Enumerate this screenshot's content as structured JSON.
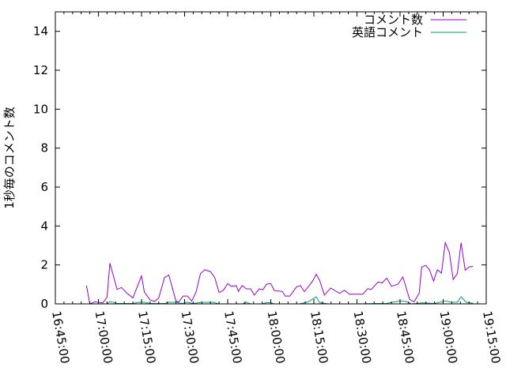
{
  "chart_data": {
    "type": "line",
    "title": "",
    "xlabel": "",
    "ylabel": "1秒毎のコメント数",
    "xlim": [
      "16:45:00",
      "19:15:00"
    ],
    "ylim": [
      0,
      15
    ],
    "x_ticks": [
      "16:45:00",
      "17:00:00",
      "17:15:00",
      "17:30:00",
      "17:45:00",
      "18:00:00",
      "18:15:00",
      "18:30:00",
      "18:45:00",
      "19:00:00",
      "19:15:00"
    ],
    "y_ticks": [
      "0",
      "2",
      "4",
      "6",
      "8",
      "10",
      "12",
      "14"
    ],
    "grid": false,
    "legend_position": "top-right",
    "series": [
      {
        "name": "コメント数",
        "color": "#9400d3",
        "points": [
          [
            "16:55:50",
            0.94
          ],
          [
            "16:57:00",
            0
          ],
          [
            "16:58:45",
            0.1
          ],
          [
            "17:01:30",
            0.05
          ],
          [
            "17:03:00",
            0.34
          ],
          [
            "17:04:00",
            2.09
          ],
          [
            "17:06:30",
            0.74
          ],
          [
            "17:08:00",
            0.84
          ],
          [
            "17:10:00",
            0.54
          ],
          [
            "17:12:00",
            0.31
          ],
          [
            "17:15:00",
            1.44
          ],
          [
            "17:16:00",
            0.61
          ],
          [
            "17:18:00",
            0.2
          ],
          [
            "17:19:30",
            0.12
          ],
          [
            "17:21:00",
            0.31
          ],
          [
            "17:23:00",
            1.35
          ],
          [
            "17:24:30",
            1.48
          ],
          [
            "17:27:00",
            0.14
          ],
          [
            "17:28:00",
            0.1
          ],
          [
            "17:29:30",
            0.4
          ],
          [
            "17:31:00",
            0.4
          ],
          [
            "17:32:30",
            0.14
          ],
          [
            "17:34:00",
            0.61
          ],
          [
            "17:35:30",
            1.55
          ],
          [
            "17:37:00",
            1.75
          ],
          [
            "17:39:00",
            1.66
          ],
          [
            "17:40:30",
            1.35
          ],
          [
            "17:42:00",
            0.58
          ],
          [
            "17:43:30",
            0.7
          ],
          [
            "17:45:00",
            1.04
          ],
          [
            "17:46:15",
            0.9
          ],
          [
            "17:48:00",
            0.94
          ],
          [
            "17:48:45",
            0.64
          ],
          [
            "17:50:00",
            0.94
          ],
          [
            "17:51:30",
            0.77
          ],
          [
            "17:53:00",
            0.77
          ],
          [
            "17:54:15",
            0.45
          ],
          [
            "17:56:00",
            0.77
          ],
          [
            "17:57:15",
            0.72
          ],
          [
            "17:58:30",
            1.01
          ],
          [
            "18:00:00",
            1.04
          ],
          [
            "18:01:15",
            0.68
          ],
          [
            "18:04:00",
            0.64
          ],
          [
            "18:05:00",
            0.4
          ],
          [
            "18:06:40",
            0.4
          ],
          [
            "18:09:00",
            0.88
          ],
          [
            "18:10:20",
            0.94
          ],
          [
            "18:11:40",
            0.63
          ],
          [
            "18:14:30",
            1.15
          ],
          [
            "18:15:50",
            1.52
          ],
          [
            "18:17:00",
            1.21
          ],
          [
            "18:18:40",
            0.45
          ],
          [
            "18:20:50",
            0.81
          ],
          [
            "18:24:00",
            0.54
          ],
          [
            "18:25:40",
            0.7
          ],
          [
            "18:27:20",
            0.5
          ],
          [
            "18:32:00",
            0.5
          ],
          [
            "18:33:45",
            0.78
          ],
          [
            "18:35:00",
            0.74
          ],
          [
            "18:37:20",
            1.12
          ],
          [
            "18:38:45",
            1.08
          ],
          [
            "18:40:25",
            1.32
          ],
          [
            "18:42:00",
            0.9
          ],
          [
            "18:44:15",
            1.01
          ],
          [
            "18:46:00",
            1.38
          ],
          [
            "18:48:20",
            0.23
          ],
          [
            "18:49:50",
            0.1
          ],
          [
            "18:51:40",
            0.54
          ],
          [
            "18:52:30",
            1.89
          ],
          [
            "18:53:55",
            1.98
          ],
          [
            "18:55:15",
            1.75
          ],
          [
            "18:56:40",
            1.17
          ],
          [
            "18:58:00",
            1.75
          ],
          [
            "18:59:25",
            1.58
          ],
          [
            "19:00:45",
            3.14
          ],
          [
            "19:02:10",
            2.63
          ],
          [
            "19:03:30",
            1.25
          ],
          [
            "19:04:55",
            1.55
          ],
          [
            "19:06:15",
            3.14
          ],
          [
            "19:07:40",
            1.73
          ],
          [
            "19:09:00",
            1.89
          ],
          [
            "19:10:25",
            1.93
          ]
        ]
      },
      {
        "name": "英語コメント",
        "color": "#009e73",
        "points": [
          [
            "16:55:50",
            0
          ],
          [
            "17:03:00",
            0
          ],
          [
            "17:04:00",
            0.12
          ],
          [
            "17:06:30",
            0.02
          ],
          [
            "17:12:00",
            0.02
          ],
          [
            "17:14:00",
            0.08
          ],
          [
            "17:16:00",
            0.08
          ],
          [
            "17:18:00",
            0.02
          ],
          [
            "17:23:00",
            0.02
          ],
          [
            "17:24:30",
            0.08
          ],
          [
            "17:27:00",
            0.08
          ],
          [
            "17:29:00",
            0.02
          ],
          [
            "17:31:00",
            0.08
          ],
          [
            "17:33:00",
            0.02
          ],
          [
            "17:36:00",
            0.08
          ],
          [
            "17:40:00",
            0.08
          ],
          [
            "17:42:00",
            0
          ],
          [
            "17:50:00",
            0
          ],
          [
            "17:51:30",
            0.08
          ],
          [
            "17:53:00",
            0
          ],
          [
            "17:57:00",
            0
          ],
          [
            "17:58:30",
            0.06
          ],
          [
            "18:00:00",
            0.06
          ],
          [
            "18:01:15",
            0
          ],
          [
            "18:10:00",
            0
          ],
          [
            "18:13:00",
            0.1
          ],
          [
            "18:15:50",
            0.36
          ],
          [
            "18:17:00",
            0.06
          ],
          [
            "18:20:00",
            0
          ],
          [
            "18:30:00",
            0
          ],
          [
            "18:37:00",
            0.02
          ],
          [
            "18:40:00",
            0.02
          ],
          [
            "18:45:00",
            0.15
          ],
          [
            "18:47:00",
            0.12
          ],
          [
            "18:49:00",
            0
          ],
          [
            "18:53:00",
            0.05
          ],
          [
            "18:57:00",
            0.02
          ],
          [
            "19:00:45",
            0.15
          ],
          [
            "19:03:00",
            0.08
          ],
          [
            "19:04:55",
            0.08
          ],
          [
            "19:06:15",
            0.36
          ],
          [
            "19:08:00",
            0.08
          ],
          [
            "19:10:25",
            0.03
          ]
        ]
      }
    ]
  }
}
